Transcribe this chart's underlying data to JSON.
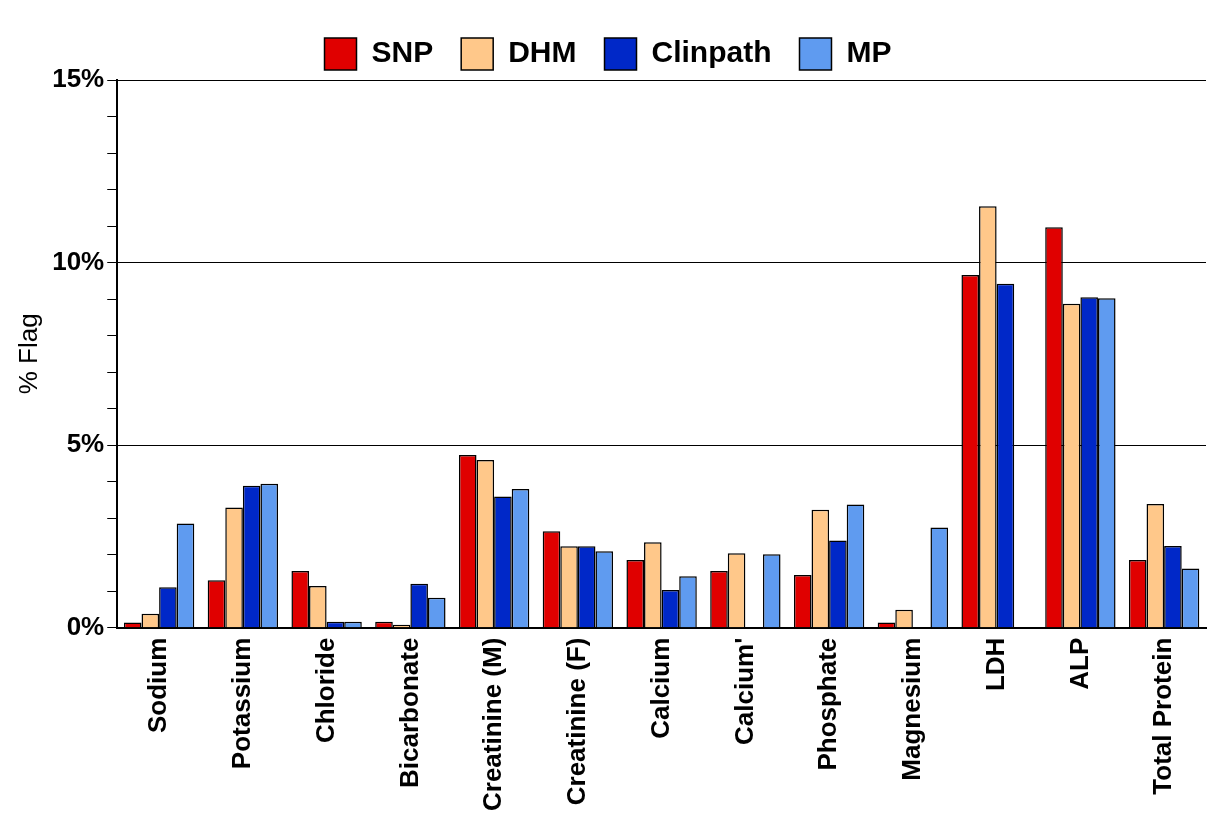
{
  "chart_data": {
    "type": "bar",
    "ylabel": "% Flag",
    "categories": [
      "Sodium",
      "Potassium",
      "Chloride",
      "Bicarbonate",
      "Creatinine (M)",
      "Creatinine (F)",
      "Calcium",
      "Calcium'",
      "Phosphate",
      "Magnesium",
      "LDH",
      "ALP",
      "Total Protein"
    ],
    "series": [
      {
        "name": "SNP",
        "color": "#e00000",
        "values": [
          0.14,
          1.3,
          1.55,
          0.16,
          4.73,
          2.64,
          1.85,
          1.55,
          1.44,
          0.14,
          9.66,
          10.97,
          1.85
        ]
      },
      {
        "name": "DHM",
        "color": "#ffc88a",
        "values": [
          0.38,
          3.29,
          1.14,
          0.08,
          4.59,
          2.23,
          2.34,
          2.04,
          3.23,
          0.49,
          11.54,
          8.87,
          3.39
        ]
      },
      {
        "name": "Clinpath",
        "color": "#0028c8",
        "values": [
          1.11,
          3.89,
          0.16,
          1.2,
          3.59,
          2.23,
          1.03,
          0,
          2.39,
          0,
          9.42,
          9.05,
          2.24
        ]
      },
      {
        "name": "MP",
        "color": "#5f9bf0",
        "values": [
          2.85,
          3.94,
          0.16,
          0.82,
          3.8,
          2.09,
          1.41,
          2.01,
          3.37,
          2.74,
          0,
          9.02,
          1.62
        ]
      }
    ],
    "ylim": [
      0,
      15
    ],
    "yticks": [
      {
        "value": 0,
        "label": "0%"
      },
      {
        "value": 1,
        "label": null
      },
      {
        "value": 2,
        "label": null
      },
      {
        "value": 3,
        "label": null
      },
      {
        "value": 4,
        "label": null
      },
      {
        "value": 5,
        "label": "5%"
      },
      {
        "value": 6,
        "label": null
      },
      {
        "value": 7,
        "label": null
      },
      {
        "value": 8,
        "label": null
      },
      {
        "value": 9,
        "label": null
      },
      {
        "value": 10,
        "label": "10%"
      },
      {
        "value": 11,
        "label": null
      },
      {
        "value": 12,
        "label": null
      },
      {
        "value": 13,
        "label": null
      },
      {
        "value": 14,
        "label": null
      },
      {
        "value": 15,
        "label": "15%"
      }
    ],
    "grid": "y",
    "legend": "top"
  }
}
